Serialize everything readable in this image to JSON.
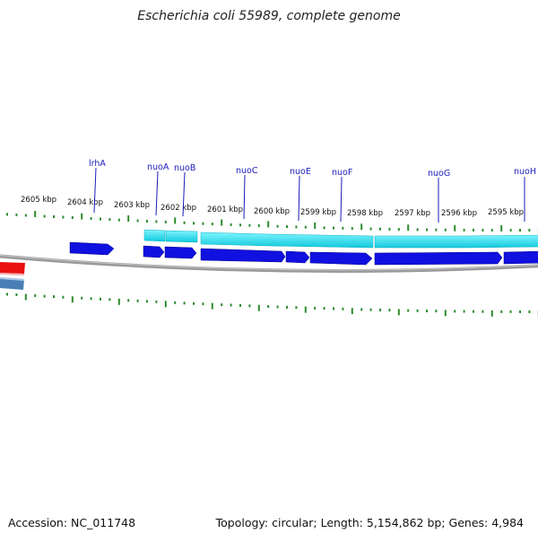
{
  "title": "Escherichia coli 55989, complete genome",
  "footer": {
    "accession": "Accession: NC_011748",
    "summary": "Topology: circular; Length: 5,154,862 bp; Genes: 4,984"
  },
  "scale_labels": [
    "2605 kbp",
    "2604 kbp",
    "2603 kbp",
    "2602 kbp",
    "2601 kbp",
    "2600 kbp",
    "2599 kbp",
    "2598 kbp",
    "2597 kbp",
    "2596 kbp",
    "2595 kbp"
  ],
  "gene_labels": [
    "lrhA",
    "nuoA",
    "nuoB",
    "nuoC",
    "nuoE",
    "nuoF",
    "nuoG",
    "nuoH"
  ],
  "colors": {
    "cds": "#1010e0",
    "gene_track": "#19d6e6",
    "backbone": "#888888",
    "tick": "#2e8b2e",
    "label": "#1a1ab8",
    "red_feature": "#e81010",
    "steel_feature": "#4a7fb5"
  }
}
